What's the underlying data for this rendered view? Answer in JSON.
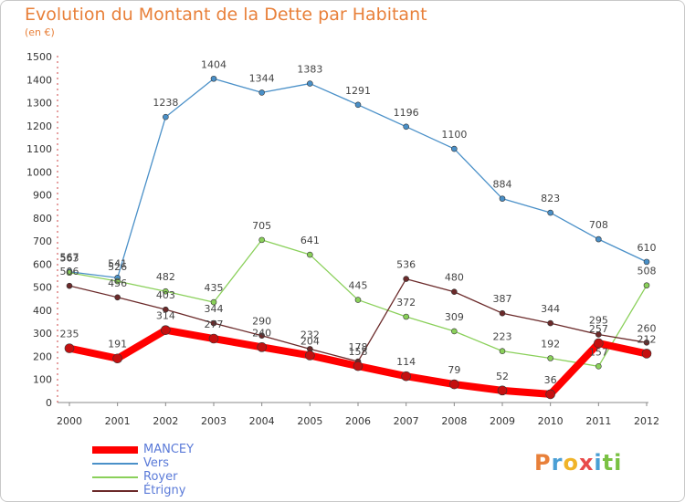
{
  "title": "Evolution du Montant de la Dette par Habitant",
  "unit_label": "(en €)",
  "logo": {
    "text": "Proxiti",
    "letters": [
      "P",
      "r",
      "o",
      "x",
      "i",
      "t",
      "i"
    ],
    "colors": [
      "#e8803a",
      "#4a9fd5",
      "#f0b429",
      "#e84a4a",
      "#4a9fd5",
      "#7ac143",
      "#7ac143"
    ]
  },
  "chart_data": {
    "type": "line",
    "x": [
      "2000",
      "2001",
      "2002",
      "2003",
      "2004",
      "2005",
      "2006",
      "2007",
      "2008",
      "2009",
      "2010",
      "2011",
      "2012"
    ],
    "ylim": [
      0,
      1500
    ],
    "yticks": [
      0,
      100,
      200,
      300,
      400,
      500,
      600,
      700,
      800,
      900,
      1000,
      1100,
      1200,
      1300,
      1400,
      1500
    ],
    "grid": false,
    "legend_position": "bottom-left",
    "series": [
      {
        "name": "MANCEY",
        "color": "#ff0000",
        "values": [
          235,
          191,
          314,
          277,
          240,
          204,
          158,
          114,
          79,
          52,
          36,
          257,
          212
        ]
      },
      {
        "name": "Vers",
        "color": "#4a90c8",
        "values": [
          567,
          541,
          1238,
          1404,
          1344,
          1383,
          1291,
          1196,
          1100,
          884,
          823,
          708,
          610
        ]
      },
      {
        "name": "Royer",
        "color": "#8ad05a",
        "values": [
          563,
          526,
          482,
          435,
          705,
          641,
          445,
          372,
          309,
          223,
          192,
          157,
          508
        ]
      },
      {
        "name": "Étrigny",
        "color": "#6b2a2a",
        "values": [
          506,
          456,
          403,
          344,
          290,
          232,
          178,
          536,
          480,
          387,
          344,
          295,
          260
        ]
      }
    ]
  }
}
